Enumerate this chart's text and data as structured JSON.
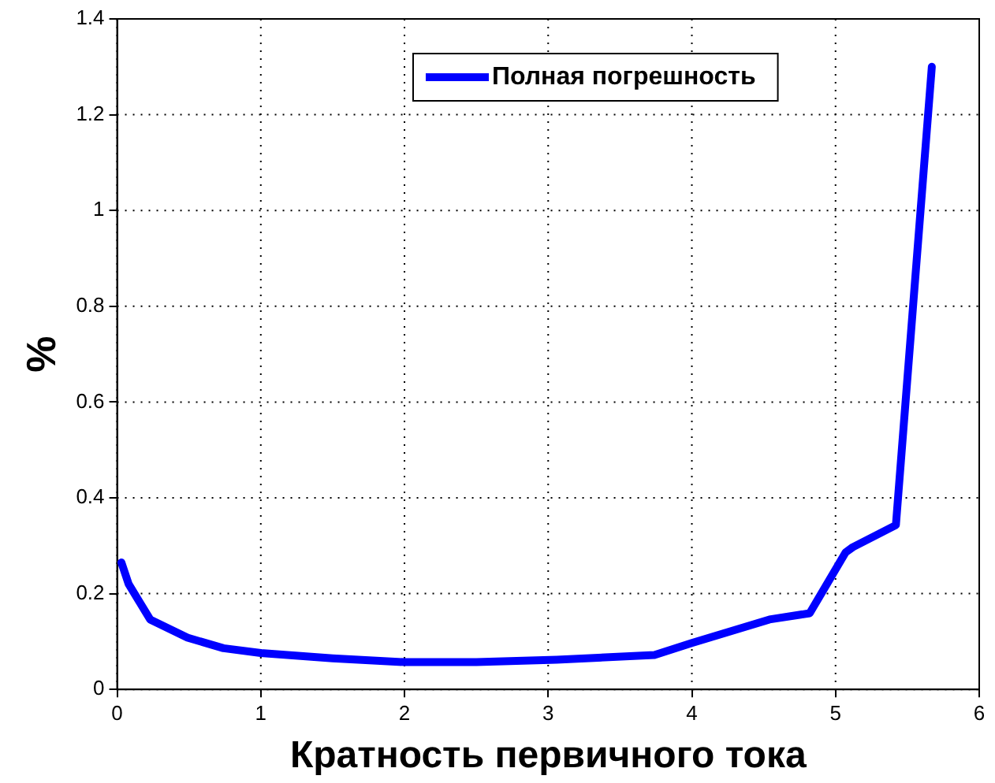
{
  "chart_data": {
    "type": "line",
    "xlabel": "Кратность первичного тока",
    "ylabel": "%",
    "x": [
      0.03,
      0.08,
      0.23,
      0.49,
      0.74,
      1.0,
      1.5,
      2.0,
      2.5,
      3.06,
      3.74,
      4.0,
      4.54,
      4.82,
      5.07,
      5.12,
      5.42,
      5.67
    ],
    "series": [
      {
        "name": "Полная погрешность",
        "color": "#0000ff",
        "values": [
          0.265,
          0.22,
          0.146,
          0.108,
          0.086,
          0.076,
          0.065,
          0.057,
          0.057,
          0.062,
          0.072,
          0.097,
          0.146,
          0.159,
          0.286,
          0.297,
          0.343,
          1.3
        ]
      }
    ],
    "xlim": [
      0,
      6
    ],
    "xticks": [
      0,
      1,
      2,
      3,
      4,
      5,
      6
    ],
    "ylim": [
      0,
      1.4
    ],
    "yticks": [
      0,
      0.2,
      0.4,
      0.6,
      0.8,
      1,
      1.2,
      1.4
    ],
    "grid": true,
    "legend": "top",
    "marker": "none",
    "line_style": "solid"
  }
}
